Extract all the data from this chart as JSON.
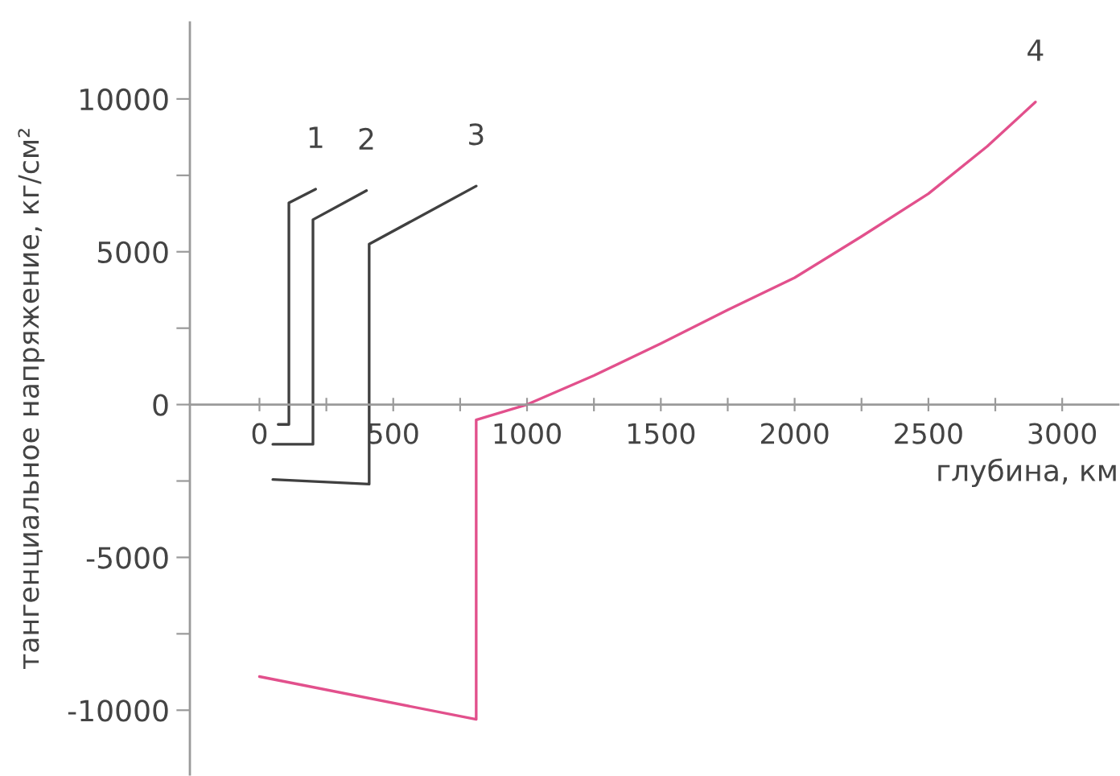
{
  "chart_data": {
    "type": "line",
    "xlabel": "глубина, км",
    "ylabel": "тангенциальное напряжение, кг/см²",
    "series": [
      {
        "name": "1",
        "color": "#404040",
        "x": [
          70,
          110,
          110,
          210
        ],
        "values": [
          -650,
          -650,
          6600,
          7050
        ]
      },
      {
        "name": "2",
        "color": "#404040",
        "x": [
          50,
          200,
          200,
          400
        ],
        "values": [
          -1300,
          -1300,
          6050,
          7000
        ]
      },
      {
        "name": "3",
        "color": "#404040",
        "x": [
          50,
          410,
          410,
          810
        ],
        "values": [
          -2450,
          -2600,
          5250,
          7150
        ]
      },
      {
        "name": "4",
        "color": "#e2508c",
        "x": [
          0,
          810,
          810,
          1000,
          1250,
          1500,
          1750,
          2000,
          2250,
          2500,
          2720,
          2900
        ],
        "values": [
          -8900,
          -10300,
          -500,
          0,
          950,
          2000,
          3100,
          4150,
          5500,
          6900,
          8450,
          9900
        ]
      }
    ],
    "xlim": [
      -260,
      3210
    ],
    "ylim": [
      -12100,
      12500
    ],
    "xticks": [
      0,
      {
        "value": 250,
        "label": null
      },
      500,
      {
        "value": 750,
        "label": null
      },
      1000,
      {
        "value": 1250,
        "label": null
      },
      1500,
      {
        "value": 1750,
        "label": null
      },
      2000,
      {
        "value": 2250,
        "label": null
      },
      2500,
      {
        "value": 2750,
        "label": null
      },
      3000
    ],
    "yticks": [
      -10000,
      {
        "value": -7500,
        "label": null
      },
      -5000,
      {
        "value": -2500,
        "label": null
      },
      0,
      {
        "value": 2500,
        "label": null
      },
      5000,
      {
        "value": 7500,
        "label": null
      },
      10000
    ]
  }
}
